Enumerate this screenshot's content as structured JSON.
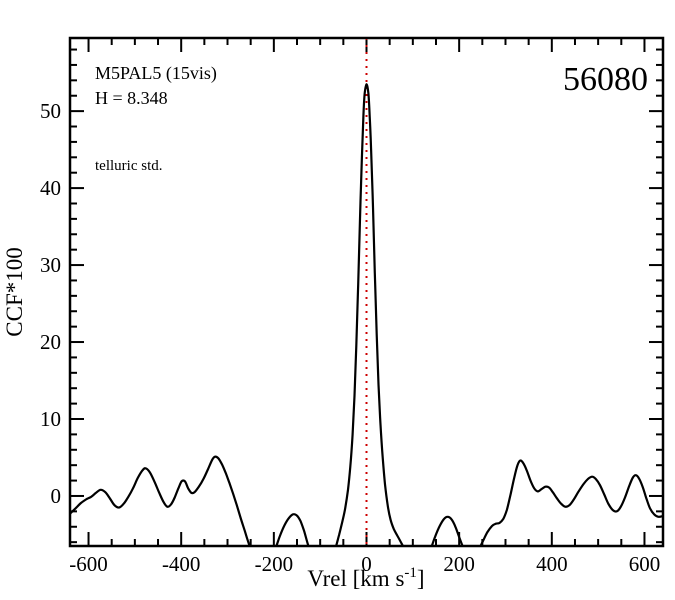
{
  "title": "56080",
  "annotations": {
    "line1": "M5PAL5 (15vis)",
    "line2": "H = 8.348",
    "telluric": "telluric std.",
    "telluric_color": "#8B008B"
  },
  "axes": {
    "ylabel": "CCF*100",
    "xlabel_main": "Vrel [km s",
    "xlabel_sup": "-1",
    "xlabel_close": "]"
  },
  "colors": {
    "curve": "#000000",
    "frame": "#000000",
    "reference_line": "#cc0000"
  },
  "chart_data": {
    "type": "line",
    "title": "56080",
    "xlabel": "Vrel [km s^-1]",
    "ylabel": "CCF*100",
    "xlim": [
      -640,
      640
    ],
    "ylim": [
      -6.5,
      59.5
    ],
    "grid": false,
    "legend": "none",
    "x_major_ticks": [
      -600,
      -400,
      -200,
      0,
      200,
      400,
      600
    ],
    "x_minor_step": 50,
    "y_major_ticks": [
      0,
      10,
      20,
      30,
      40,
      50
    ],
    "y_minor_step": 2,
    "reference_line": {
      "x": 0,
      "color": "#cc0000",
      "style": "dotted"
    },
    "series": [
      {
        "name": "ccf",
        "color": "#000000",
        "points": [
          [
            -640,
            -2.3
          ],
          [
            -628,
            -1.6
          ],
          [
            -616,
            -0.9
          ],
          [
            -604,
            -0.4
          ],
          [
            -594,
            -0.1
          ],
          [
            -584,
            0.4
          ],
          [
            -574,
            0.8
          ],
          [
            -564,
            0.5
          ],
          [
            -554,
            -0.3
          ],
          [
            -544,
            -1.2
          ],
          [
            -534,
            -1.5
          ],
          [
            -524,
            -1.0
          ],
          [
            -514,
            -0.1
          ],
          [
            -504,
            1.0
          ],
          [
            -494,
            2.3
          ],
          [
            -484,
            3.3
          ],
          [
            -477,
            3.6
          ],
          [
            -468,
            3.1
          ],
          [
            -458,
            1.9
          ],
          [
            -448,
            0.5
          ],
          [
            -438,
            -0.8
          ],
          [
            -430,
            -1.4
          ],
          [
            -422,
            -1.1
          ],
          [
            -414,
            -0.2
          ],
          [
            -406,
            1.0
          ],
          [
            -399,
            1.9
          ],
          [
            -392,
            1.9
          ],
          [
            -385,
            1.0
          ],
          [
            -378,
            0.4
          ],
          [
            -371,
            0.5
          ],
          [
            -362,
            1.2
          ],
          [
            -352,
            2.2
          ],
          [
            -342,
            3.5
          ],
          [
            -333,
            4.7
          ],
          [
            -327,
            5.1
          ],
          [
            -320,
            4.9
          ],
          [
            -312,
            4.1
          ],
          [
            -304,
            3.0
          ],
          [
            -296,
            1.7
          ],
          [
            -288,
            0.3
          ],
          [
            -280,
            -1.2
          ],
          [
            -272,
            -2.8
          ],
          [
            -263,
            -4.5
          ],
          [
            -254,
            -6.2
          ],
          [
            -244,
            -7.8
          ],
          [
            -232,
            -8.8
          ],
          [
            -220,
            -9.0
          ],
          [
            -208,
            -8.3
          ],
          [
            -197,
            -6.9
          ],
          [
            -187,
            -5.2
          ],
          [
            -177,
            -3.8
          ],
          [
            -168,
            -2.9
          ],
          [
            -159,
            -2.4
          ],
          [
            -151,
            -2.5
          ],
          [
            -143,
            -3.2
          ],
          [
            -135,
            -4.5
          ],
          [
            -127,
            -6.2
          ],
          [
            -118,
            -7.9
          ],
          [
            -108,
            -9.2
          ],
          [
            -97,
            -9.8
          ],
          [
            -86,
            -9.5
          ],
          [
            -76,
            -8.4
          ],
          [
            -67,
            -6.8
          ],
          [
            -59,
            -5.0
          ],
          [
            -52,
            -3.3
          ],
          [
            -46,
            -1.6
          ],
          [
            -40,
            0.8
          ],
          [
            -35,
            3.8
          ],
          [
            -30,
            8.0
          ],
          [
            -26,
            13.0
          ],
          [
            -22,
            19.5
          ],
          [
            -18,
            27.5
          ],
          [
            -14,
            36.0
          ],
          [
            -10,
            44.0
          ],
          [
            -7,
            49.0
          ],
          [
            -4,
            52.2
          ],
          [
            0,
            53.5
          ],
          [
            4,
            52.3
          ],
          [
            7,
            49.3
          ],
          [
            10,
            45.0
          ],
          [
            14,
            37.5
          ],
          [
            18,
            29.0
          ],
          [
            22,
            21.0
          ],
          [
            26,
            14.5
          ],
          [
            30,
            9.5
          ],
          [
            35,
            5.0
          ],
          [
            40,
            1.5
          ],
          [
            46,
            -1.3
          ],
          [
            52,
            -3.1
          ],
          [
            59,
            -4.3
          ],
          [
            67,
            -5.2
          ],
          [
            76,
            -6.2
          ],
          [
            86,
            -7.4
          ],
          [
            96,
            -8.5
          ],
          [
            107,
            -9.2
          ],
          [
            118,
            -9.2
          ],
          [
            128,
            -8.4
          ],
          [
            138,
            -7.0
          ],
          [
            148,
            -5.3
          ],
          [
            158,
            -3.9
          ],
          [
            167,
            -3.0
          ],
          [
            175,
            -2.7
          ],
          [
            183,
            -3.0
          ],
          [
            192,
            -4.0
          ],
          [
            201,
            -5.5
          ],
          [
            211,
            -7.0
          ],
          [
            221,
            -7.9
          ],
          [
            231,
            -7.9
          ],
          [
            241,
            -7.1
          ],
          [
            251,
            -5.9
          ],
          [
            261,
            -4.7
          ],
          [
            271,
            -3.9
          ],
          [
            279,
            -3.6
          ],
          [
            287,
            -3.5
          ],
          [
            295,
            -3.0
          ],
          [
            303,
            -1.8
          ],
          [
            311,
            0.2
          ],
          [
            319,
            2.4
          ],
          [
            326,
            4.0
          ],
          [
            332,
            4.6
          ],
          [
            338,
            4.3
          ],
          [
            346,
            3.3
          ],
          [
            354,
            2.0
          ],
          [
            362,
            1.0
          ],
          [
            370,
            0.6
          ],
          [
            378,
            0.9
          ],
          [
            386,
            1.2
          ],
          [
            394,
            1.1
          ],
          [
            402,
            0.5
          ],
          [
            411,
            -0.3
          ],
          [
            420,
            -1.0
          ],
          [
            429,
            -1.4
          ],
          [
            438,
            -1.2
          ],
          [
            447,
            -0.5
          ],
          [
            457,
            0.5
          ],
          [
            468,
            1.5
          ],
          [
            478,
            2.2
          ],
          [
            487,
            2.5
          ],
          [
            495,
            2.2
          ],
          [
            504,
            1.4
          ],
          [
            513,
            0.2
          ],
          [
            522,
            -1.0
          ],
          [
            531,
            -1.8
          ],
          [
            540,
            -2.0
          ],
          [
            549,
            -1.4
          ],
          [
            558,
            -0.2
          ],
          [
            567,
            1.3
          ],
          [
            575,
            2.4
          ],
          [
            581,
            2.7
          ],
          [
            588,
            2.3
          ],
          [
            596,
            1.2
          ],
          [
            604,
            -0.3
          ],
          [
            612,
            -1.6
          ],
          [
            621,
            -2.4
          ],
          [
            630,
            -2.7
          ],
          [
            640,
            -2.6
          ]
        ]
      }
    ]
  }
}
